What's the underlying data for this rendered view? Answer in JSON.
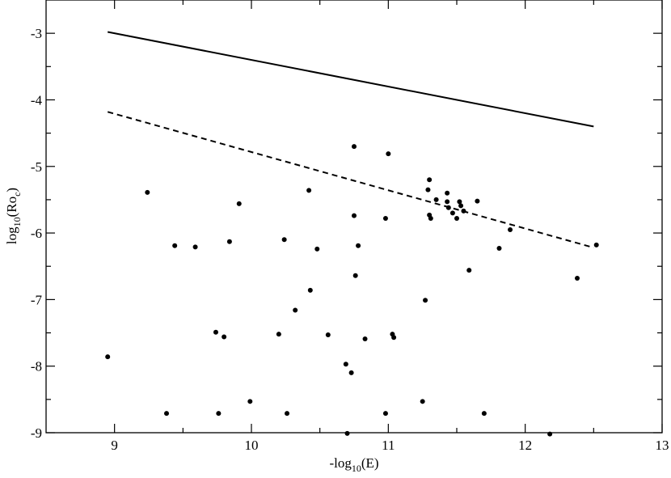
{
  "chart_data": {
    "type": "scatter",
    "xlabel": "-log10(E)",
    "ylabel": "log10(Roc)",
    "xlabel_parts": {
      "pre": "-log",
      "sub": "10",
      "post": "(E)"
    },
    "ylabel_parts": {
      "pre": "log",
      "sub": "10",
      "mid": "(Ro",
      "sub2": "c",
      "post": ")"
    },
    "xlim": [
      8.5,
      13
    ],
    "ylim": [
      -9,
      -2.5
    ],
    "xticks_major": [
      "9",
      "10",
      "11",
      "12",
      "13"
    ],
    "yticks_major": [
      "-3",
      "-4",
      "-5",
      "-6",
      "-7",
      "-8",
      "-9"
    ],
    "grid": false,
    "series": [
      {
        "style": "solid-line",
        "color": "#000000",
        "x": [
          8.95,
          12.5
        ],
        "y": [
          -2.98,
          -4.4
        ]
      },
      {
        "style": "dashed-line",
        "color": "#000000",
        "x": [
          8.95,
          12.5
        ],
        "y": [
          -4.18,
          -6.22
        ]
      },
      {
        "style": "points",
        "color": "#000000",
        "x": [
          8.95,
          9.24,
          9.38,
          9.44,
          9.59,
          9.74,
          9.76,
          9.8,
          9.84,
          9.91,
          9.99,
          10.2,
          10.24,
          10.26,
          10.32,
          10.42,
          10.43,
          10.48,
          10.56,
          10.69,
          10.7,
          10.73,
          10.75,
          10.75,
          10.76,
          10.78,
          10.83,
          10.98,
          10.98,
          11.0,
          11.03,
          11.04,
          11.25,
          11.27,
          11.29,
          11.3,
          11.3,
          11.31,
          11.35,
          11.43,
          11.43,
          11.44,
          11.47,
          11.5,
          11.52,
          11.53,
          11.55,
          11.59,
          11.65,
          11.7,
          11.81,
          11.89,
          12.18,
          12.38,
          12.52
        ],
        "y": [
          -7.86,
          -5.39,
          -8.71,
          -6.19,
          -6.21,
          -7.49,
          -8.71,
          -7.56,
          -6.13,
          -5.56,
          -8.53,
          -7.52,
          -6.1,
          -8.71,
          -7.16,
          -5.36,
          -6.86,
          -6.24,
          -7.53,
          -7.97,
          -9.01,
          -8.1,
          -4.7,
          -5.74,
          -6.64,
          -6.19,
          -7.59,
          -5.78,
          -8.71,
          -4.81,
          -7.52,
          -7.57,
          -8.53,
          -7.01,
          -5.35,
          -5.2,
          -5.73,
          -5.78,
          -5.5,
          -5.4,
          -5.53,
          -5.62,
          -5.7,
          -5.78,
          -5.53,
          -5.59,
          -5.67,
          -6.56,
          -5.52,
          -8.71,
          -6.23,
          -5.95,
          -9.02,
          -6.68,
          -6.18
        ]
      }
    ]
  }
}
